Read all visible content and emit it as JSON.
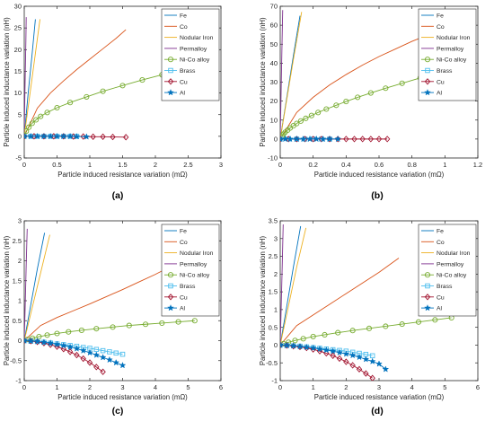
{
  "legend_entries": [
    {
      "name": "Fe",
      "color": "#0072BD",
      "marker": "none"
    },
    {
      "name": "Co",
      "color": "#D95319",
      "marker": "none"
    },
    {
      "name": "Nodular Iron",
      "color": "#EDB120",
      "marker": "none"
    },
    {
      "name": "Permalloy",
      "color": "#7E2F8E",
      "marker": "none"
    },
    {
      "name": "Ni-Co alloy",
      "color": "#77AC30",
      "marker": "circle"
    },
    {
      "name": "Brass",
      "color": "#4DBEEE",
      "marker": "square"
    },
    {
      "name": "Cu",
      "color": "#A2142F",
      "marker": "diamond"
    },
    {
      "name": "Al",
      "color": "#0072BD",
      "marker": "star"
    }
  ],
  "chart_data": [
    {
      "type": "line",
      "caption": "(a)",
      "xlabel": "Particle induced resistance variation (mΩ)",
      "ylabel": "Particle induced inductance variation (nH)",
      "xlim": [
        0,
        3
      ],
      "ylim": [
        -5,
        30
      ],
      "xticks": [
        "0",
        "0.5",
        "1",
        "1.5",
        "2",
        "2.5",
        "3"
      ],
      "yticks": [
        "-5",
        "0",
        "5",
        "10",
        "15",
        "20",
        "25",
        "30"
      ],
      "series": [
        {
          "name": "Fe",
          "x": [
            0,
            0.06,
            0.12,
            0.17
          ],
          "y": [
            0,
            10,
            19,
            27
          ]
        },
        {
          "name": "Co",
          "x": [
            0,
            0.2,
            0.4,
            0.6,
            0.8,
            1.0,
            1.2,
            1.4,
            1.55
          ],
          "y": [
            0,
            6.5,
            10,
            12.8,
            15.4,
            17.8,
            20.2,
            22.6,
            24.6
          ]
        },
        {
          "name": "Nodular Iron",
          "x": [
            0,
            0.08,
            0.16,
            0.24
          ],
          "y": [
            0,
            9,
            18,
            27
          ]
        },
        {
          "name": "Permalloy",
          "x": [
            0,
            0.01,
            0.025,
            0.03
          ],
          "y": [
            0,
            10,
            22,
            27.5
          ]
        },
        {
          "name": "Ni-Co alloy",
          "x": [
            0,
            0.03,
            0.07,
            0.12,
            0.18,
            0.25,
            0.35,
            0.5,
            0.7,
            0.95,
            1.2,
            1.5,
            1.8,
            2.1,
            2.4
          ],
          "y": [
            0,
            1.2,
            2.1,
            3,
            3.8,
            4.6,
            5.5,
            6.6,
            7.8,
            9.1,
            10.4,
            11.7,
            13,
            14.2,
            15.3
          ]
        },
        {
          "name": "Brass",
          "x": [
            0,
            0.1,
            0.2,
            0.3,
            0.4,
            0.5,
            0.6,
            0.7,
            0.8
          ],
          "y": [
            0,
            0,
            0,
            0,
            0,
            0,
            0,
            0,
            0
          ]
        },
        {
          "name": "Cu",
          "x": [
            0,
            0.15,
            0.3,
            0.45,
            0.6,
            0.75,
            0.9,
            1.05,
            1.2,
            1.35,
            1.55
          ],
          "y": [
            0,
            0,
            0,
            0,
            0,
            -0.05,
            -0.05,
            -0.1,
            -0.1,
            -0.15,
            -0.2
          ]
        },
        {
          "name": "Al",
          "x": [
            0,
            0.1,
            0.2,
            0.3,
            0.4,
            0.5,
            0.6,
            0.7,
            0.8,
            0.95
          ],
          "y": [
            0,
            0,
            0,
            0,
            0,
            0,
            0,
            0,
            -0.05,
            -0.1
          ]
        }
      ]
    },
    {
      "type": "line",
      "caption": "(b)",
      "xlabel": "Particle induced resistance variation (mΩ)",
      "ylabel": "Particle induced inductance variation (nH)",
      "xlim": [
        0,
        1.2
      ],
      "ylim": [
        -10,
        70
      ],
      "xticks": [
        "0",
        "0.2",
        "0.4",
        "0.6",
        "0.8",
        "1",
        "1.2"
      ],
      "yticks": [
        "-10",
        "0",
        "10",
        "20",
        "30",
        "40",
        "50",
        "60",
        "70"
      ],
      "series": [
        {
          "name": "Fe",
          "x": [
            0,
            0.04,
            0.08,
            0.12
          ],
          "y": [
            0,
            22,
            44,
            65
          ]
        },
        {
          "name": "Co",
          "x": [
            0,
            0.1,
            0.2,
            0.3,
            0.4,
            0.5,
            0.6,
            0.7,
            0.8,
            0.9,
            1.0
          ],
          "y": [
            0,
            14,
            22,
            28.5,
            34,
            39,
            43.5,
            47.5,
            51.5,
            55,
            58.5
          ]
        },
        {
          "name": "Nodular Iron",
          "x": [
            0,
            0.04,
            0.08,
            0.13
          ],
          "y": [
            0,
            21,
            42,
            67
          ]
        },
        {
          "name": "Permalloy",
          "x": [
            0,
            0.005,
            0.01,
            0.015
          ],
          "y": [
            0,
            23,
            46,
            68
          ]
        },
        {
          "name": "Ni-Co alloy",
          "x": [
            0,
            0.01,
            0.02,
            0.03,
            0.045,
            0.06,
            0.08,
            0.1,
            0.125,
            0.155,
            0.19,
            0.23,
            0.28,
            0.34,
            0.4,
            0.47,
            0.55,
            0.64,
            0.74,
            0.85,
            1.0
          ],
          "y": [
            0,
            1.5,
            2.6,
            3.6,
            4.7,
            5.8,
            7,
            8.2,
            9.5,
            10.9,
            12.4,
            14,
            15.8,
            17.8,
            19.8,
            22,
            24.3,
            26.8,
            29.4,
            32.2,
            36
          ]
        },
        {
          "name": "Brass",
          "x": [
            0,
            0.05,
            0.1,
            0.15,
            0.2,
            0.25,
            0.3
          ],
          "y": [
            0,
            0,
            0,
            0,
            0,
            0,
            0
          ]
        },
        {
          "name": "Cu",
          "x": [
            0,
            0.05,
            0.1,
            0.15,
            0.2,
            0.25,
            0.3,
            0.35,
            0.4,
            0.45,
            0.5,
            0.55,
            0.6,
            0.65
          ],
          "y": [
            0,
            0,
            0,
            0,
            0,
            0,
            0,
            0,
            0,
            0,
            0,
            0,
            0,
            0
          ]
        },
        {
          "name": "Al",
          "x": [
            0,
            0.03,
            0.06,
            0.1,
            0.14,
            0.18,
            0.22,
            0.26,
            0.3,
            0.35
          ],
          "y": [
            0,
            0,
            0,
            0,
            0,
            0,
            0,
            0,
            0,
            0
          ]
        }
      ]
    },
    {
      "type": "line",
      "caption": "(c)",
      "xlabel": "Particle induced resistance variation (mΩ)",
      "ylabel": "Particle induced inductance variation (nH)",
      "xlim": [
        0,
        6
      ],
      "ylim": [
        -1,
        3
      ],
      "xticks": [
        "0",
        "1",
        "2",
        "3",
        "4",
        "5",
        "6"
      ],
      "yticks": [
        "-1",
        "-0.5",
        "0",
        "0.5",
        "1",
        "1.5",
        "2",
        "2.5",
        "3"
      ],
      "series": [
        {
          "name": "Fe",
          "x": [
            0,
            0.2,
            0.4,
            0.62
          ],
          "y": [
            0,
            0.9,
            1.8,
            2.7
          ]
        },
        {
          "name": "Co",
          "x": [
            0,
            0.5,
            1,
            1.5,
            2,
            2.5,
            3,
            3.5,
            4,
            4.5
          ],
          "y": [
            0,
            0.38,
            0.58,
            0.75,
            0.92,
            1.1,
            1.28,
            1.47,
            1.66,
            1.87
          ]
        },
        {
          "name": "Nodular Iron",
          "x": [
            0,
            0.25,
            0.5,
            0.78
          ],
          "y": [
            0,
            0.85,
            1.7,
            2.65
          ]
        },
        {
          "name": "Permalloy",
          "x": [
            0,
            0.03,
            0.06,
            0.09
          ],
          "y": [
            0,
            0.9,
            1.9,
            2.8
          ]
        },
        {
          "name": "Ni-Co alloy",
          "x": [
            0,
            0.1,
            0.25,
            0.45,
            0.7,
            1.0,
            1.35,
            1.75,
            2.2,
            2.7,
            3.2,
            3.7,
            4.2,
            4.7,
            5.2
          ],
          "y": [
            0,
            0.03,
            0.06,
            0.1,
            0.14,
            0.18,
            0.22,
            0.26,
            0.3,
            0.34,
            0.38,
            0.41,
            0.44,
            0.47,
            0.5
          ]
        },
        {
          "name": "Brass",
          "x": [
            0,
            0.2,
            0.4,
            0.6,
            0.8,
            1.0,
            1.2,
            1.4,
            1.6,
            1.8,
            2.0,
            2.2,
            2.4,
            2.6,
            2.8,
            3.0
          ],
          "y": [
            0,
            -0.01,
            -0.02,
            -0.04,
            -0.06,
            -0.08,
            -0.1,
            -0.12,
            -0.14,
            -0.17,
            -0.19,
            -0.22,
            -0.25,
            -0.28,
            -0.31,
            -0.34
          ]
        },
        {
          "name": "Cu",
          "x": [
            0,
            0.2,
            0.4,
            0.6,
            0.8,
            1.0,
            1.2,
            1.4,
            1.6,
            1.8,
            2.0,
            2.2,
            2.4
          ],
          "y": [
            0,
            -0.01,
            -0.03,
            -0.06,
            -0.1,
            -0.15,
            -0.21,
            -0.28,
            -0.36,
            -0.45,
            -0.55,
            -0.66,
            -0.78
          ]
        },
        {
          "name": "Al",
          "x": [
            0,
            0.2,
            0.4,
            0.6,
            0.8,
            1.0,
            1.2,
            1.4,
            1.6,
            1.8,
            2.0,
            2.2,
            2.4,
            2.6,
            2.8,
            3.0
          ],
          "y": [
            0,
            -0.01,
            -0.02,
            -0.04,
            -0.06,
            -0.09,
            -0.12,
            -0.16,
            -0.2,
            -0.25,
            -0.3,
            -0.36,
            -0.42,
            -0.48,
            -0.55,
            -0.62
          ]
        }
      ]
    },
    {
      "type": "line",
      "caption": "(d)",
      "xlabel": "Particle induced resistance variation (mΩ)",
      "ylabel": "Particle induced inductance variation (nH)",
      "xlim": [
        0,
        6
      ],
      "ylim": [
        -1,
        3.5
      ],
      "xticks": [
        "0",
        "1",
        "2",
        "3",
        "4",
        "5",
        "6"
      ],
      "yticks": [
        "-1",
        "-0.5",
        "0",
        "0.5",
        "1",
        "1.5",
        "2",
        "2.5",
        "3",
        "3.5"
      ],
      "series": [
        {
          "name": "Fe",
          "x": [
            0,
            0.2,
            0.4,
            0.62
          ],
          "y": [
            0,
            1.1,
            2.2,
            3.35
          ]
        },
        {
          "name": "Co",
          "x": [
            0,
            0.5,
            1,
            1.5,
            2,
            2.5,
            3,
            3.6
          ],
          "y": [
            0,
            0.55,
            0.85,
            1.15,
            1.45,
            1.75,
            2.05,
            2.45
          ]
        },
        {
          "name": "Nodular Iron",
          "x": [
            0,
            0.25,
            0.5,
            0.78
          ],
          "y": [
            0,
            1.1,
            2.2,
            3.3
          ]
        },
        {
          "name": "Permalloy",
          "x": [
            0,
            0.03,
            0.06,
            0.09
          ],
          "y": [
            0,
            1.1,
            2.2,
            3.4
          ]
        },
        {
          "name": "Ni-Co alloy",
          "x": [
            0,
            0.1,
            0.25,
            0.45,
            0.7,
            1.0,
            1.35,
            1.75,
            2.2,
            2.7,
            3.2,
            3.7,
            4.2,
            4.7,
            5.2
          ],
          "y": [
            0,
            0.04,
            0.08,
            0.13,
            0.18,
            0.24,
            0.29,
            0.35,
            0.41,
            0.47,
            0.53,
            0.59,
            0.65,
            0.71,
            0.77
          ]
        },
        {
          "name": "Brass",
          "x": [
            0,
            0.2,
            0.4,
            0.6,
            0.8,
            1.0,
            1.2,
            1.4,
            1.6,
            1.8,
            2.0,
            2.2,
            2.4,
            2.6,
            2.8
          ],
          "y": [
            0,
            -0.01,
            -0.02,
            -0.03,
            -0.05,
            -0.07,
            -0.09,
            -0.11,
            -0.13,
            -0.15,
            -0.17,
            -0.2,
            -0.23,
            -0.26,
            -0.3
          ]
        },
        {
          "name": "Cu",
          "x": [
            0,
            0.2,
            0.4,
            0.6,
            0.8,
            1.0,
            1.2,
            1.4,
            1.6,
            1.8,
            2.0,
            2.2,
            2.4,
            2.6,
            2.8
          ],
          "y": [
            0,
            -0.01,
            -0.03,
            -0.05,
            -0.08,
            -0.12,
            -0.17,
            -0.23,
            -0.3,
            -0.38,
            -0.47,
            -0.57,
            -0.68,
            -0.8,
            -0.93
          ]
        },
        {
          "name": "Al",
          "x": [
            0,
            0.2,
            0.4,
            0.6,
            0.8,
            1.0,
            1.2,
            1.4,
            1.6,
            1.8,
            2.0,
            2.2,
            2.4,
            2.6,
            2.8,
            3.0,
            3.2
          ],
          "y": [
            0,
            -0.01,
            -0.02,
            -0.04,
            -0.06,
            -0.08,
            -0.11,
            -0.14,
            -0.17,
            -0.21,
            -0.25,
            -0.29,
            -0.34,
            -0.4,
            -0.46,
            -0.53,
            -0.68
          ]
        }
      ]
    }
  ]
}
